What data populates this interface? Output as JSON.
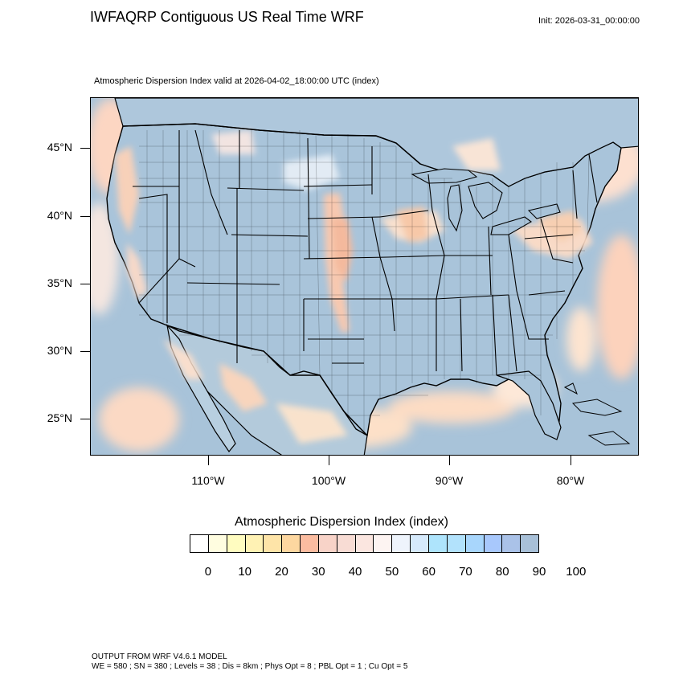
{
  "header": {
    "title": "IWFAQRP Contiguous US Real Time WRF",
    "init": "Init: 2026-03-31_00:00:00",
    "subtitle": "Atmospheric Dispersion Index valid at 2026-04-02_18:00:00 UTC   (index)"
  },
  "map": {
    "lat_labels": [
      "45°N",
      "40°N",
      "35°N",
      "30°N",
      "25°N"
    ],
    "lon_labels": [
      "110°W",
      "100°W",
      "90°W",
      "80°W"
    ],
    "colors": {
      "ocean": "#a8c3d9",
      "land_high": "#a9c4da",
      "low_values": "#fcd0b4",
      "mid_values": "#fde3cf",
      "borders": "#000000"
    }
  },
  "colorbar": {
    "title": "Atmospheric Dispersion Index  (index)",
    "tick_labels": [
      "0",
      "10",
      "20",
      "30",
      "40",
      "50",
      "60",
      "70",
      "80",
      "90",
      "100"
    ],
    "colors": [
      "#ffffff",
      "#fffde0",
      "#fffcc0",
      "#fff2b4",
      "#fee4a8",
      "#fdd7a0",
      "#fbbca0",
      "#f8d3c8",
      "#f8dcd4",
      "#fbe6e0",
      "#fdf4f2",
      "#eef4fc",
      "#d6eafc",
      "#aee4fc",
      "#b2e2fc",
      "#a8d6fc",
      "#a8c8fc",
      "#aac2e8",
      "#a8c0d8"
    ]
  },
  "footer": {
    "line1": "OUTPUT FROM WRF V4.6.1 MODEL",
    "line2": "WE = 580 ; SN = 380 ; Levels = 38 ; Dis = 8km ; Phys Opt = 8 ; PBL Opt = 1 ; Cu Opt = 5"
  }
}
